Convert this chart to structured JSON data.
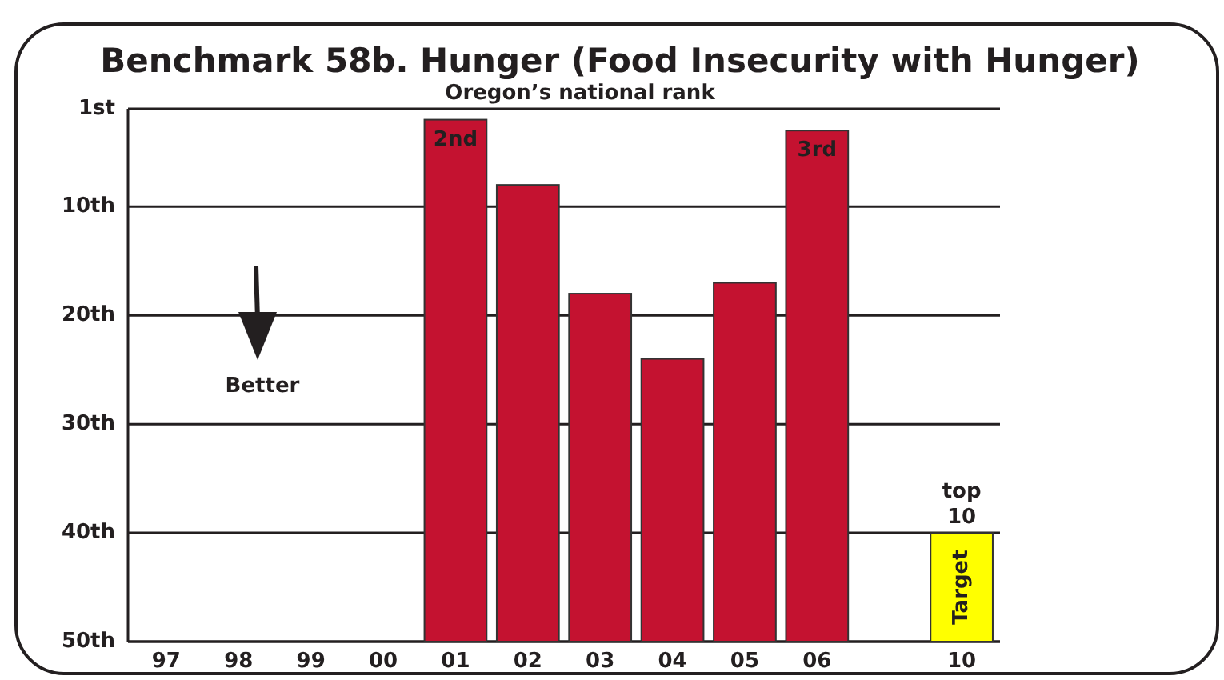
{
  "chart_data": {
    "type": "bar",
    "title": "Benchmark 58b. Hunger (Food Insecurity with Hunger)",
    "subtitle": "Oregon’s national rank",
    "categories": [
      "97",
      "98",
      "99",
      "00",
      "01",
      "02",
      "03",
      "04",
      "05",
      "06",
      null,
      "10"
    ],
    "values": [
      null,
      null,
      null,
      null,
      -48,
      -42,
      -32,
      -26,
      -33,
      -47,
      null,
      -10
    ],
    "base": [
      null,
      null,
      null,
      null,
      50,
      50,
      50,
      50,
      50,
      50,
      null,
      50
    ],
    "colors": [
      null,
      null,
      null,
      null,
      "#c41230",
      "#c41230",
      "#c41230",
      "#c41230",
      "#c41230",
      "#c41230",
      null,
      "#ffff00"
    ],
    "value_labels": [
      null,
      null,
      null,
      null,
      "2nd",
      null,
      null,
      null,
      null,
      "3rd",
      null,
      "Target"
    ],
    "ylim": [
      50,
      1
    ],
    "yticks": [
      {
        "value": 1,
        "label": "1st"
      },
      {
        "value": 10,
        "label": "10th"
      },
      {
        "value": 20,
        "label": "20th"
      },
      {
        "value": 30,
        "label": "30th"
      },
      {
        "value": 40,
        "label": "40th"
      },
      {
        "value": 50,
        "label": "50th"
      }
    ],
    "grid": "y",
    "annotations": [
      "Better",
      {
        "text": "top 10",
        "x": "10",
        "y": 40
      }
    ]
  }
}
